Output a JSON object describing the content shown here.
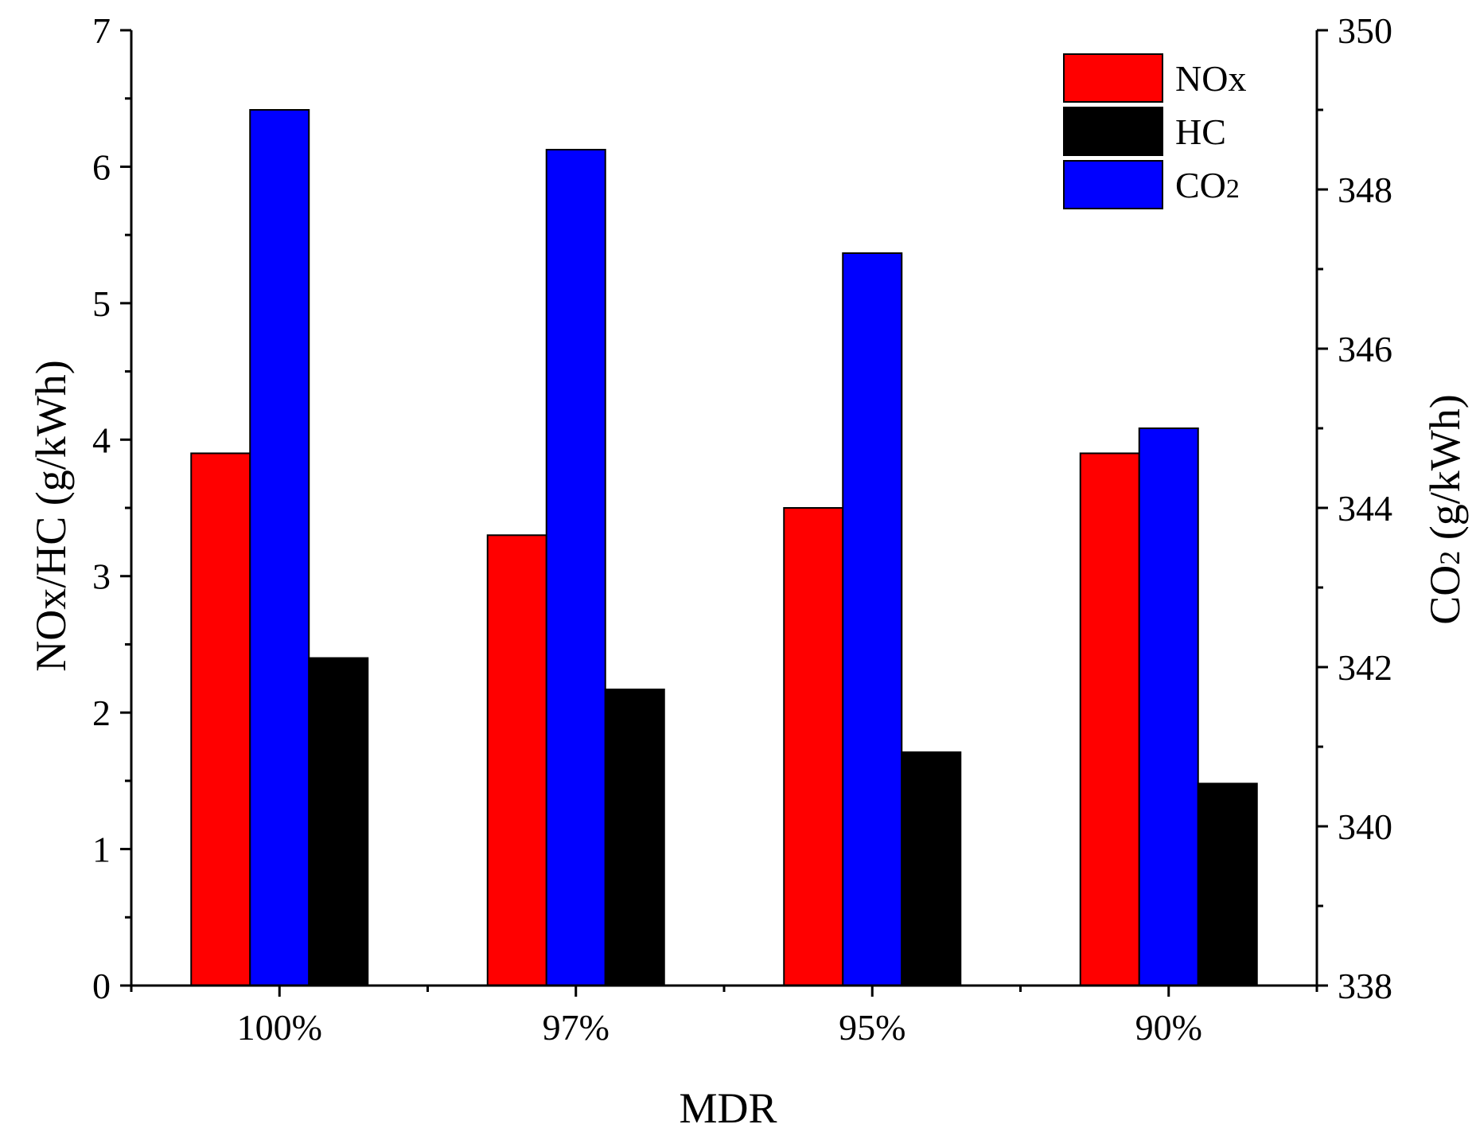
{
  "chart_data": {
    "type": "bar",
    "title": "",
    "xlabel": "MDR",
    "categories": [
      "100%",
      "97%",
      "95%",
      "90%"
    ],
    "left_axis": {
      "label": "NOx/HC (g/kWh)",
      "ylim": [
        0,
        7
      ],
      "ticks": [
        "0",
        "1",
        "2",
        "3",
        "4",
        "5",
        "6",
        "7"
      ]
    },
    "right_axis": {
      "label_main": "CO",
      "label_sub": "2",
      "label_tail": " (g/kWh)",
      "ylim": [
        338,
        350
      ],
      "ticks": [
        "338",
        "340",
        "342",
        "344",
        "346",
        "348",
        "350"
      ]
    },
    "series": [
      {
        "name": "NOx",
        "name_main": "NOx",
        "name_sub": "",
        "axis": "left",
        "color": "#ff0000",
        "values": [
          3.9,
          3.3,
          3.5,
          3.9
        ]
      },
      {
        "name": "CO2",
        "name_main": "CO",
        "name_sub": "2",
        "axis": "right",
        "color": "#0000ff",
        "values": [
          349.0,
          348.5,
          347.2,
          345.0
        ]
      },
      {
        "name": "HC",
        "name_main": "HC",
        "name_sub": "",
        "axis": "left",
        "color": "#000000",
        "values": [
          2.4,
          2.17,
          1.71,
          1.48
        ]
      }
    ],
    "legend": {
      "position": "top-right",
      "order": [
        "NOx",
        "HC",
        "CO2"
      ]
    },
    "grid": false
  }
}
